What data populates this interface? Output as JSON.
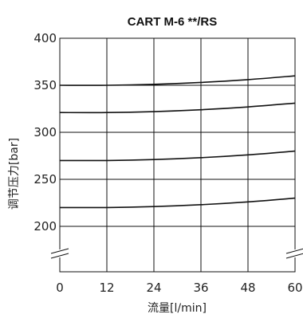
{
  "chart_data": {
    "type": "line",
    "title": "CART  M-6 **/RS",
    "xlabel": "流量[l/min]",
    "ylabel": "调节压力[bar]",
    "xlim": [
      0,
      60
    ],
    "ylim": [
      200,
      400
    ],
    "x_ticks": [
      "0",
      "12",
      "24",
      "36",
      "48",
      "60"
    ],
    "y_ticks": [
      "400",
      "350",
      "300",
      "250",
      "200"
    ],
    "y_axis_break": true,
    "grid": true,
    "x": [
      0,
      12,
      24,
      36,
      48,
      60
    ],
    "series": [
      {
        "values": [
          350,
          350,
          351,
          353,
          356,
          360
        ]
      },
      {
        "values": [
          321,
          321,
          322,
          324,
          327,
          331
        ]
      },
      {
        "values": [
          270,
          270,
          271,
          273,
          276,
          280
        ]
      },
      {
        "values": [
          220,
          220,
          221,
          223,
          226,
          230
        ]
      }
    ]
  }
}
